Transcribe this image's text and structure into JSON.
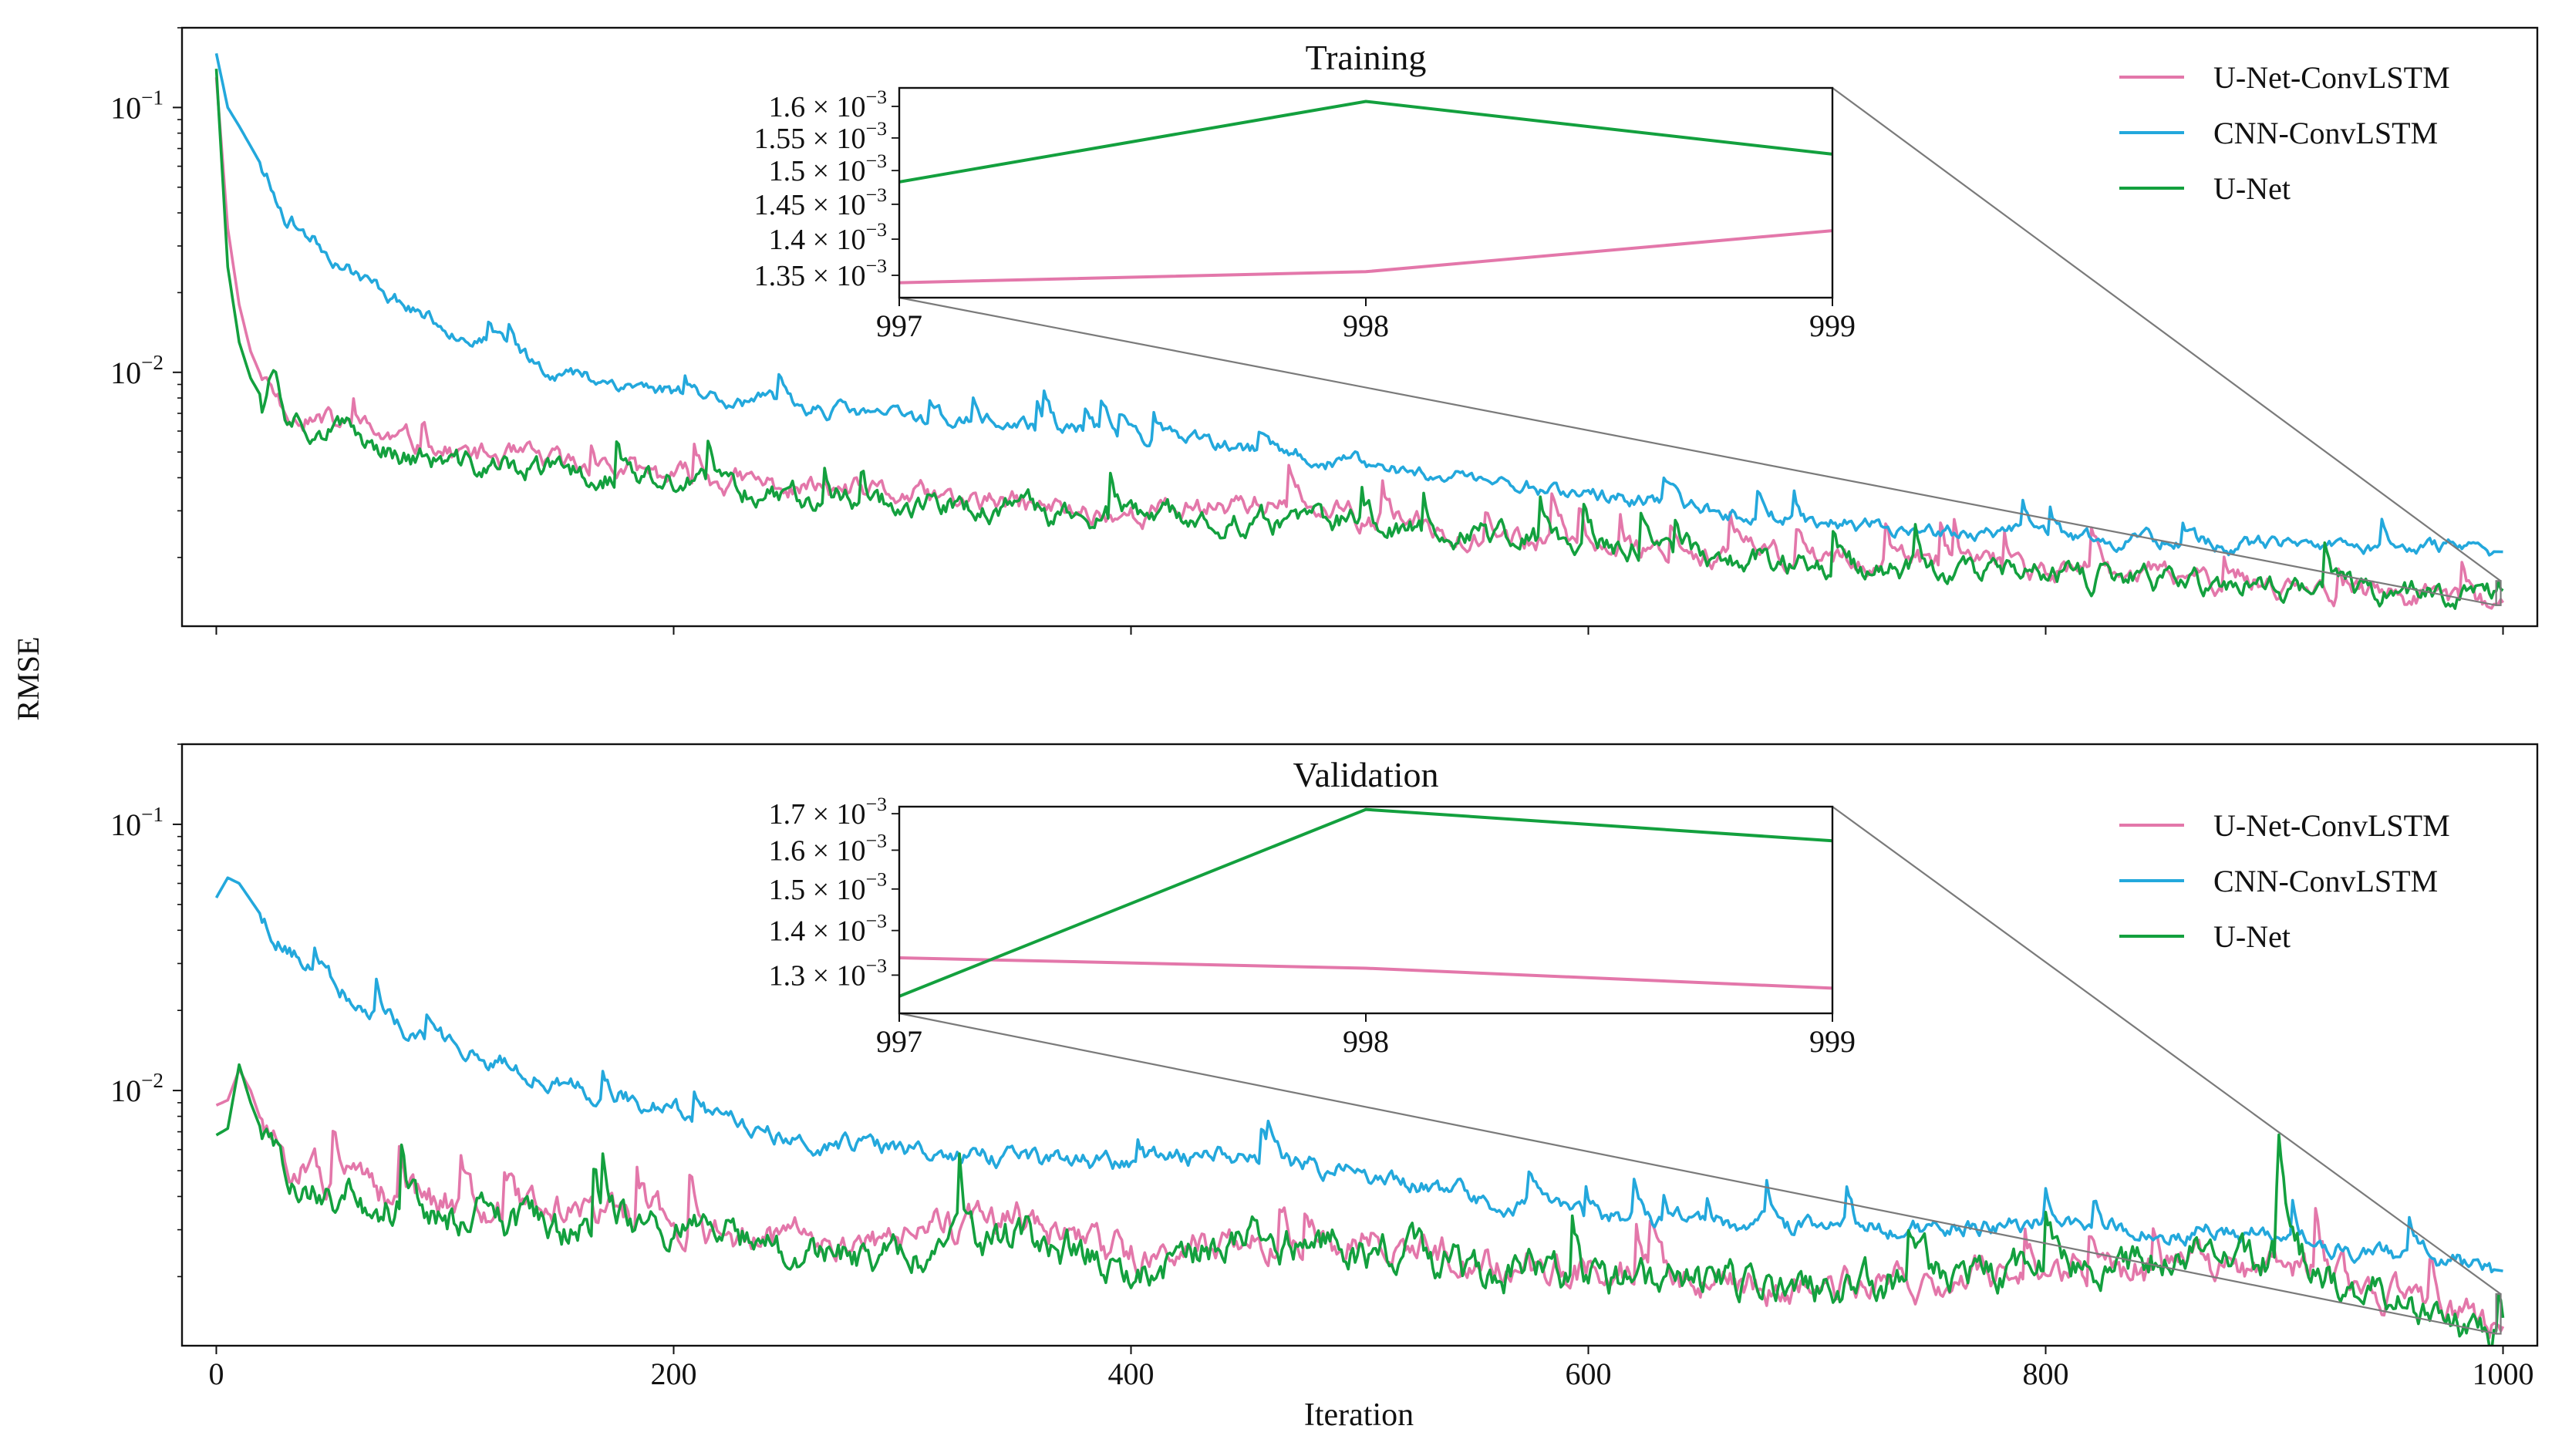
{
  "figure": {
    "shared_ylabel": "RMSE",
    "shared_xlabel": "Iteration"
  },
  "colors": {
    "U-Net-ConvLSTM": "#e377aa",
    "CNN-ConvLSTM": "#23a8dc",
    "U-Net": "#13a03e",
    "axes": "#111111",
    "zoom_connector": "#7a7a7a"
  },
  "chart_data": [
    {
      "type": "line",
      "title": "",
      "xlabel": "",
      "ylabel": "RMSE",
      "yscale": "log",
      "xlim": [
        -15,
        1015
      ],
      "ylim": [
        0.0011,
        0.2
      ],
      "xticks": [
        0,
        200,
        400,
        600,
        800,
        1000
      ],
      "xtick_labels": [
        "",
        "",
        "",
        "",
        "",
        ""
      ],
      "yticks": [
        0.01,
        0.1
      ],
      "ytick_labels": [
        {
          "base": "10",
          "exp": "−2"
        },
        {
          "base": "10",
          "exp": "−1"
        }
      ],
      "legend": {
        "placement": "top-right",
        "entries": [
          "U-Net-ConvLSTM",
          "CNN-ConvLSTM",
          "U-Net"
        ]
      },
      "series": [
        {
          "name": "U-Net-ConvLSTM",
          "x": [
            0,
            5,
            10,
            15,
            20,
            30,
            40,
            60,
            80,
            100,
            150,
            200,
            250,
            300,
            400,
            450,
            500,
            600,
            700,
            800,
            900,
            997,
            998,
            999,
            1000
          ],
          "y": [
            0.13,
            0.035,
            0.018,
            0.012,
            0.0095,
            0.0075,
            0.0068,
            0.006,
            0.0055,
            0.005,
            0.0045,
            0.004,
            0.0037,
            0.0034,
            0.0029,
            0.0033,
            0.0028,
            0.0022,
            0.002,
            0.0018,
            0.0016,
            0.00133,
            0.00134,
            0.00139,
            0.00135
          ],
          "noise": 0.12,
          "seed": 11
        },
        {
          "name": "CNN-ConvLSTM",
          "x": [
            0,
            5,
            10,
            20,
            30,
            50,
            70,
            100,
            150,
            200,
            250,
            300,
            400,
            500,
            600,
            700,
            800,
            900,
            1000
          ],
          "y": [
            0.16,
            0.1,
            0.085,
            0.06,
            0.04,
            0.028,
            0.021,
            0.015,
            0.01,
            0.0085,
            0.0075,
            0.0068,
            0.0058,
            0.0045,
            0.0035,
            0.0027,
            0.0024,
            0.0022,
            0.0021
          ],
          "noise": 0.08,
          "seed": 23
        },
        {
          "name": "U-Net",
          "x": [
            0,
            5,
            10,
            15,
            20,
            25,
            30,
            40,
            60,
            80,
            100,
            150,
            200,
            250,
            300,
            400,
            500,
            600,
            700,
            800,
            900,
            997,
            998,
            999,
            1000
          ],
          "y": [
            0.14,
            0.025,
            0.013,
            0.0095,
            0.008,
            0.011,
            0.0075,
            0.0065,
            0.0058,
            0.005,
            0.0045,
            0.0042,
            0.0038,
            0.0035,
            0.0032,
            0.0028,
            0.0027,
            0.0022,
            0.0019,
            0.0017,
            0.00155,
            0.00149,
            0.00161,
            0.00152,
            0.0015
          ],
          "noise": 0.13,
          "seed": 37
        }
      ],
      "inset": {
        "title": "Training",
        "xlim": [
          997,
          999
        ],
        "ylim": [
          0.00132,
          0.00163
        ],
        "xticks": [
          997,
          998,
          999
        ],
        "yticks": [
          {
            "v": 0.00135,
            "mant": "1.35 × 10",
            "exp": "−3"
          },
          {
            "v": 0.0014,
            "mant": "1.4 × 10",
            "exp": "−3"
          },
          {
            "v": 0.00145,
            "mant": "1.45 × 10",
            "exp": "−3"
          },
          {
            "v": 0.0015,
            "mant": "1.5 × 10",
            "exp": "−3"
          },
          {
            "v": 0.00155,
            "mant": "1.55 × 10",
            "exp": "−3"
          },
          {
            "v": 0.0016,
            "mant": "1.6 × 10",
            "exp": "−3"
          }
        ],
        "series": [
          {
            "name": "U-Net-ConvLSTM",
            "x": [
              997,
              998,
              999
            ],
            "y": [
              0.00134,
              0.001355,
              0.001412
            ]
          },
          {
            "name": "U-Net",
            "x": [
              997,
              998,
              999
            ],
            "y": [
              0.001483,
              0.001608,
              0.001525
            ]
          }
        ]
      }
    },
    {
      "type": "line",
      "title": "",
      "xlabel": "Iteration",
      "ylabel": "RMSE",
      "yscale": "log",
      "xlim": [
        -15,
        1015
      ],
      "ylim": [
        0.0011,
        0.2
      ],
      "xticks": [
        0,
        200,
        400,
        600,
        800,
        1000
      ],
      "xtick_labels": [
        "0",
        "200",
        "400",
        "600",
        "800",
        "1000"
      ],
      "yticks": [
        0.01,
        0.1
      ],
      "ytick_labels": [
        {
          "base": "10",
          "exp": "−2"
        },
        {
          "base": "10",
          "exp": "−1"
        }
      ],
      "legend": {
        "placement": "top-right",
        "entries": [
          "U-Net-ConvLSTM",
          "CNN-ConvLSTM",
          "U-Net"
        ]
      },
      "series": [
        {
          "name": "U-Net-ConvLSTM",
          "x": [
            0,
            5,
            10,
            15,
            20,
            30,
            50,
            70,
            100,
            150,
            200,
            250,
            300,
            350,
            400,
            450,
            500,
            600,
            700,
            800,
            900,
            997,
            998,
            999,
            1000
          ],
          "y": [
            0.0088,
            0.0092,
            0.012,
            0.01,
            0.0075,
            0.0055,
            0.0045,
            0.004,
            0.0038,
            0.0036,
            0.0032,
            0.0027,
            0.0028,
            0.0032,
            0.0024,
            0.0026,
            0.0027,
            0.0021,
            0.0018,
            0.0021,
            0.0022,
            0.00133,
            0.00131,
            0.00125,
            0.0013
          ],
          "noise": 0.18,
          "seed": 51
        },
        {
          "name": "CNN-ConvLSTM",
          "x": [
            0,
            5,
            10,
            20,
            30,
            50,
            70,
            100,
            150,
            200,
            250,
            300,
            350,
            400,
            450,
            500,
            600,
            700,
            800,
            900,
            1000
          ],
          "y": [
            0.053,
            0.063,
            0.06,
            0.045,
            0.035,
            0.025,
            0.019,
            0.015,
            0.011,
            0.0085,
            0.0068,
            0.006,
            0.0055,
            0.0052,
            0.0058,
            0.0048,
            0.0034,
            0.003,
            0.0032,
            0.0028,
            0.0021
          ],
          "noise": 0.1,
          "seed": 63
        },
        {
          "name": "U-Net",
          "x": [
            0,
            5,
            10,
            15,
            20,
            30,
            50,
            70,
            100,
            150,
            200,
            250,
            300,
            350,
            400,
            450,
            500,
            600,
            700,
            800,
            900,
            997,
            998,
            999,
            1000
          ],
          "y": [
            0.0068,
            0.0072,
            0.0125,
            0.009,
            0.007,
            0.005,
            0.0042,
            0.0038,
            0.0035,
            0.003,
            0.0032,
            0.0025,
            0.0024,
            0.0028,
            0.0021,
            0.0028,
            0.0025,
            0.0019,
            0.0018,
            0.0022,
            0.0024,
            0.00125,
            0.00171,
            0.00163,
            0.0014
          ],
          "noise": 0.2,
          "seed": 79
        }
      ],
      "inset": {
        "title": "Validation",
        "xlim": [
          997,
          999
        ],
        "ylim": [
          0.00122,
          0.00172
        ],
        "xticks": [
          997,
          998,
          999
        ],
        "yticks": [
          {
            "v": 0.0013,
            "mant": "1.3 × 10",
            "exp": "−3"
          },
          {
            "v": 0.0014,
            "mant": "1.4 × 10",
            "exp": "−3"
          },
          {
            "v": 0.0015,
            "mant": "1.5 × 10",
            "exp": "−3"
          },
          {
            "v": 0.0016,
            "mant": "1.6 × 10",
            "exp": "−3"
          },
          {
            "v": 0.0017,
            "mant": "1.7 × 10",
            "exp": "−3"
          }
        ],
        "series": [
          {
            "name": "U-Net-ConvLSTM",
            "x": [
              997,
              998,
              999
            ],
            "y": [
              0.001338,
              0.001315,
              0.001272
            ]
          },
          {
            "name": "U-Net",
            "x": [
              997,
              998,
              999
            ],
            "y": [
              0.001255,
              0.001712,
              0.001625
            ]
          }
        ]
      }
    }
  ]
}
